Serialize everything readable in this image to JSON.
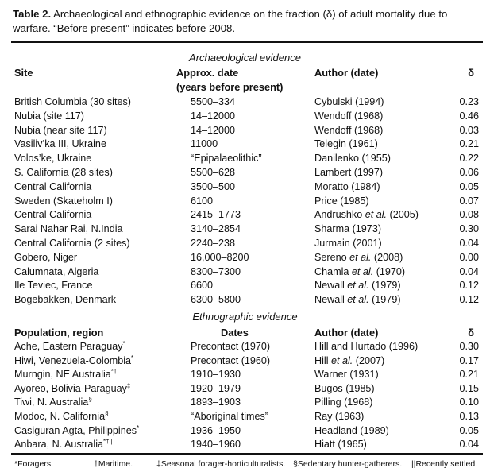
{
  "caption": {
    "label": "Table 2.",
    "text": " Archaeological and ethnographic evidence on the fraction (δ) of adult mortality due to warfare. “Before present” indicates before 2008."
  },
  "archaeological": {
    "section_title": "Archaeological evidence",
    "headers": {
      "site": "Site",
      "date": "Approx. date",
      "date_sub": "(years before present)",
      "author": "Author (date)",
      "delta": "δ"
    },
    "rows": [
      {
        "site": "British Columbia (30 sites)",
        "date": "5500–334",
        "author_pre": "Cybulski",
        "author_it": "",
        "author_post": " (1994)",
        "delta": "0.23"
      },
      {
        "site": "Nubia (site 117)",
        "date": "14–12000",
        "author_pre": "Wendoff",
        "author_it": "",
        "author_post": " (1968)",
        "delta": "0.46"
      },
      {
        "site": "Nubia (near site 117)",
        "date": "14–12000",
        "author_pre": "Wendoff",
        "author_it": "",
        "author_post": " (1968)",
        "delta": "0.03"
      },
      {
        "site": "Vasiliv’ka III, Ukraine",
        "date": "11000",
        "author_pre": "Telegin",
        "author_it": "",
        "author_post": " (1961)",
        "delta": "0.21"
      },
      {
        "site": "Volos’ke, Ukraine",
        "date": "“Epipalaeolithic”",
        "author_pre": "Danilenko",
        "author_it": "",
        "author_post": " (1955)",
        "delta": "0.22"
      },
      {
        "site": "S. California (28 sites)",
        "date": "5500–628",
        "author_pre": "Lambert",
        "author_it": "",
        "author_post": " (1997)",
        "delta": "0.06"
      },
      {
        "site": "Central California",
        "date": "3500–500",
        "author_pre": "Moratto",
        "author_it": "",
        "author_post": " (1984)",
        "delta": "0.05"
      },
      {
        "site": "Sweden (Skateholm I)",
        "date": "6100",
        "author_pre": "Price",
        "author_it": "",
        "author_post": " (1985)",
        "delta": "0.07"
      },
      {
        "site": "Central California",
        "date": "2415–1773",
        "author_pre": "Andrushko ",
        "author_it": "et al.",
        "author_post": " (2005)",
        "delta": "0.08"
      },
      {
        "site": "Sarai Nahar Rai, N.India",
        "date": "3140–2854",
        "author_pre": "Sharma",
        "author_it": "",
        "author_post": " (1973)",
        "delta": "0.30"
      },
      {
        "site": "Central California (2 sites)",
        "date": "2240–238",
        "author_pre": "Jurmain",
        "author_it": "",
        "author_post": " (2001)",
        "delta": "0.04"
      },
      {
        "site": "Gobero, Niger",
        "date": "16,000–8200",
        "author_pre": "Sereno ",
        "author_it": "et al.",
        "author_post": " (2008)",
        "delta": "0.00"
      },
      {
        "site": "Calumnata, Algeria",
        "date": "8300–7300",
        "author_pre": "Chamla ",
        "author_it": "et al.",
        "author_post": " (1970)",
        "delta": "0.04"
      },
      {
        "site": "Ile Teviec, France",
        "date": "6600",
        "author_pre": "Newall ",
        "author_it": "et al.",
        "author_post": " (1979)",
        "delta": "0.12"
      },
      {
        "site": "Bogebakken, Denmark",
        "date": "6300–5800",
        "author_pre": "Newall ",
        "author_it": "et al.",
        "author_post": " (1979)",
        "delta": "0.12"
      }
    ]
  },
  "ethnographic": {
    "section_title": "Ethnographic evidence",
    "headers": {
      "population": "Population, region",
      "date": "Dates",
      "author": "Author (date)",
      "delta": "δ"
    },
    "rows": [
      {
        "site": "Ache, Eastern Paraguay",
        "mark": "*",
        "date": "Precontact (1970)",
        "author_pre": "Hill and Hurtado (1996)",
        "author_it": "",
        "author_post": "",
        "delta": "0.30"
      },
      {
        "site": "Hiwi, Venezuela-Colombia",
        "mark": "*",
        "date": "Precontact (1960)",
        "author_pre": "Hill ",
        "author_it": "et al.",
        "author_post": " (2007)",
        "delta": "0.17"
      },
      {
        "site": "Murngin, NE Australia",
        "mark": "*†",
        "date": "1910–1930",
        "author_pre": "Warner (1931)",
        "author_it": "",
        "author_post": "",
        "delta": "0.21"
      },
      {
        "site": "Ayoreo, Bolivia-Paraguay",
        "mark": "‡",
        "date": "1920–1979",
        "author_pre": "Bugos (1985)",
        "author_it": "",
        "author_post": "",
        "delta": "0.15"
      },
      {
        "site": "Tiwi, N. Australia",
        "mark": "§",
        "date": "1893–1903",
        "author_pre": "Pilling (1968)",
        "author_it": "",
        "author_post": "",
        "delta": "0.10"
      },
      {
        "site": "Modoc, N. California",
        "mark": "§",
        "date": "“Aboriginal times”",
        "author_pre": "Ray (1963)",
        "author_it": "",
        "author_post": "",
        "delta": "0.13"
      },
      {
        "site": "Casiguran Agta, Philippines",
        "mark": "*",
        "date": "1936–1950",
        "author_pre": "Headland (1989)",
        "author_it": "",
        "author_post": "",
        "delta": "0.05"
      },
      {
        "site": "Anbara, N. Australia",
        "mark": "*†||",
        "date": "1940–1960",
        "author_pre": "Hiatt (1965)",
        "author_it": "",
        "author_post": "",
        "delta": "0.04"
      }
    ]
  },
  "footnotes": [
    "*Foragers.",
    "†Maritime.",
    "‡Seasonal forager-horticulturalists.",
    "§Sedentary hunter-gatherers.",
    "||Recently settled."
  ]
}
